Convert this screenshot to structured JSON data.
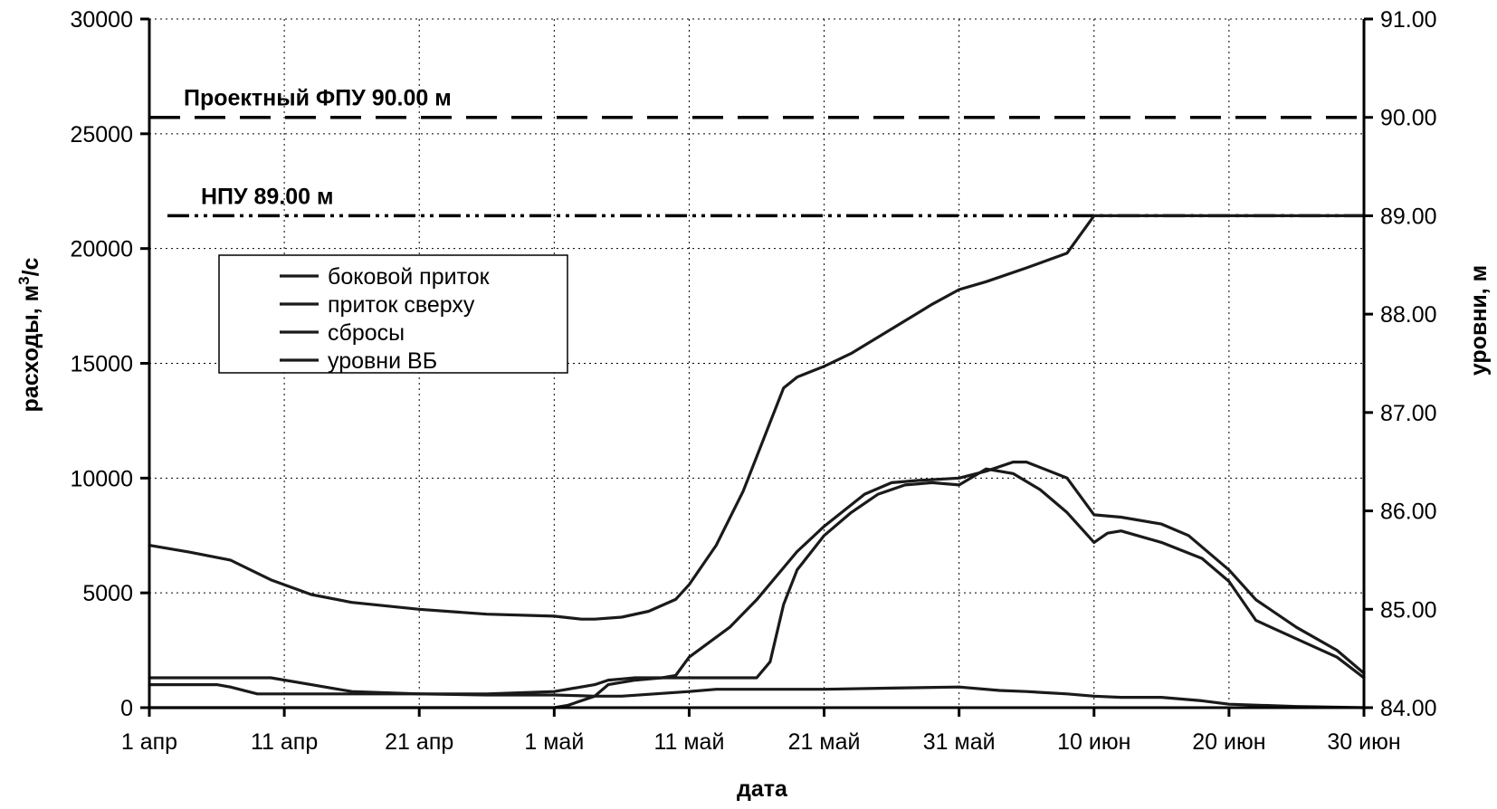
{
  "chart_data": {
    "type": "line",
    "title": "",
    "xlabel": "дата",
    "ylabel_left_prefix": "расходы, м",
    "ylabel_left_sup": "3",
    "ylabel_left_suffix": "/с",
    "ylabel_right": "уровни, м",
    "x_range_days": [
      0,
      90
    ],
    "x_ticks": [
      {
        "day": 0,
        "label": "1 апр"
      },
      {
        "day": 10,
        "label": "11 апр"
      },
      {
        "day": 20,
        "label": "21 апр"
      },
      {
        "day": 30,
        "label": "1 май"
      },
      {
        "day": 40,
        "label": "11 май"
      },
      {
        "day": 50,
        "label": "21 май"
      },
      {
        "day": 60,
        "label": "31 май"
      },
      {
        "day": 70,
        "label": "10 июн"
      },
      {
        "day": 80,
        "label": "20 июн"
      },
      {
        "day": 90,
        "label": "30 июн"
      }
    ],
    "ylim_left": [
      0,
      30000
    ],
    "y_ticks_left": [
      "0",
      "5000",
      "10000",
      "15000",
      "20000",
      "25000",
      "30000"
    ],
    "ylim_right": [
      84.0,
      91.0
    ],
    "y_ticks_right": [
      "84.00",
      "85.00",
      "86.00",
      "87.00",
      "88.00",
      "89.00",
      "90.00",
      "91.00"
    ],
    "grid": true,
    "legend_position": "upper-left",
    "reference_lines": [
      {
        "name": "Проектный ФПУ 90.00 м",
        "axis": "right",
        "value": 90.0,
        "style": "dashed"
      },
      {
        "name": "НПУ 89.00 м",
        "axis": "right",
        "value": 89.0,
        "style": "dash-dot"
      }
    ],
    "series": [
      {
        "name": "боковой приток",
        "axis": "left",
        "color": "#1a1a1a",
        "x": [
          0,
          5,
          6,
          8,
          10,
          14,
          17,
          20,
          25,
          30,
          33,
          35,
          40,
          42,
          45,
          50,
          55,
          60,
          63,
          65,
          68,
          70,
          72,
          75,
          78,
          80,
          85,
          90
        ],
        "y": [
          1000,
          1000,
          900,
          600,
          600,
          600,
          600,
          600,
          550,
          550,
          500,
          500,
          700,
          800,
          800,
          800,
          850,
          900,
          750,
          700,
          600,
          500,
          450,
          450,
          300,
          150,
          50,
          0
        ]
      },
      {
        "name": "приток сверху",
        "axis": "left",
        "color": "#1a1a1a",
        "x": [
          0,
          9,
          12,
          15,
          20,
          25,
          30,
          33,
          34,
          35,
          36,
          38,
          39,
          40,
          43,
          45,
          48,
          50,
          53,
          55,
          57,
          60,
          62,
          64,
          65,
          68,
          70,
          72,
          75,
          77,
          80,
          82,
          85,
          88,
          90
        ],
        "y": [
          1300,
          1300,
          1000,
          700,
          600,
          600,
          700,
          1000,
          1200,
          1250,
          1300,
          1300,
          1400,
          2200,
          3500,
          4700,
          6800,
          7900,
          9300,
          9800,
          9900,
          10000,
          10300,
          10700,
          10700,
          10000,
          8400,
          8300,
          8000,
          7500,
          6000,
          4700,
          3500,
          2500,
          1500
        ]
      },
      {
        "name": "сбросы",
        "axis": "left",
        "color": "#1a1a1a",
        "x": [
          0,
          10,
          20,
          25,
          30,
          31,
          32,
          33,
          34,
          35,
          36,
          37,
          38,
          40,
          42,
          45,
          46,
          47,
          48,
          50,
          52,
          54,
          56,
          58,
          60,
          62,
          64,
          66,
          68,
          70,
          71,
          72,
          75,
          78,
          80,
          82,
          85,
          88,
          90
        ],
        "y": [
          0,
          0,
          0,
          0,
          0,
          100,
          300,
          500,
          1000,
          1100,
          1200,
          1250,
          1300,
          1300,
          1300,
          1300,
          2000,
          4500,
          6000,
          7500,
          8500,
          9300,
          9700,
          9800,
          9700,
          10400,
          10200,
          9500,
          8500,
          7200,
          7600,
          7700,
          7200,
          6500,
          5500,
          3800,
          3000,
          2200,
          1300
        ]
      },
      {
        "name": "уровни ВБ",
        "axis": "right",
        "color": "#1a1a1a",
        "x": [
          0,
          3,
          6,
          9,
          12,
          15,
          20,
          25,
          30,
          32,
          33,
          35,
          37,
          39,
          40,
          42,
          44,
          45,
          46,
          47,
          48,
          50,
          52,
          55,
          58,
          60,
          62,
          65,
          68,
          70,
          75,
          80,
          85,
          90
        ],
        "y": [
          85.65,
          85.58,
          85.5,
          85.3,
          85.15,
          85.07,
          85.0,
          84.95,
          84.93,
          84.9,
          84.9,
          84.92,
          84.98,
          85.1,
          85.25,
          85.65,
          86.2,
          86.55,
          86.9,
          87.25,
          87.36,
          87.47,
          87.6,
          87.85,
          88.1,
          88.25,
          88.33,
          88.47,
          88.62,
          89.0,
          89.0,
          89.0,
          89.0,
          89.0
        ]
      }
    ]
  }
}
